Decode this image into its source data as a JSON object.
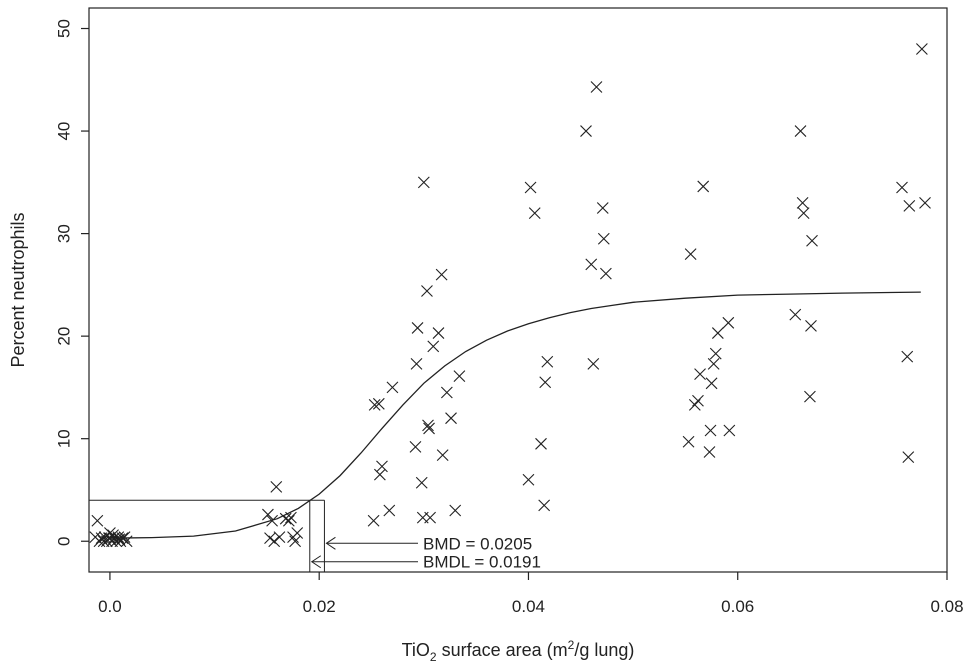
{
  "chart_data": {
    "type": "scatter",
    "xlabel": {
      "pre": "TiO",
      "sub": "2",
      "mid": " surface area (m",
      "sup": "2",
      "post": "/g lung)"
    },
    "ylabel": "Percent neutrophils",
    "xlim": [
      -0.002,
      0.08
    ],
    "ylim": [
      -3,
      52
    ],
    "x_ticks": [
      0.0,
      0.02,
      0.04,
      0.06,
      0.08
    ],
    "x_tick_labels": [
      "0.0",
      "0.02",
      "0.04",
      "0.06",
      "0.08"
    ],
    "y_ticks": [
      0,
      10,
      20,
      30,
      40,
      50
    ],
    "y_tick_labels": [
      "0",
      "10",
      "20",
      "30",
      "40",
      "50"
    ],
    "marker": "x",
    "points": [
      [
        -0.0012,
        2.0
      ],
      [
        -0.0014,
        0.4
      ],
      [
        -0.001,
        0.0
      ],
      [
        -0.0008,
        0.3
      ],
      [
        -0.0005,
        0.4
      ],
      [
        -0.0003,
        0.0
      ],
      [
        -0.0001,
        0.3
      ],
      [
        0.0,
        0.8
      ],
      [
        0.0002,
        0.0
      ],
      [
        0.0004,
        0.3
      ],
      [
        0.0006,
        0.0
      ],
      [
        0.0008,
        0.4
      ],
      [
        0.001,
        0.0
      ],
      [
        0.0012,
        0.3
      ],
      [
        0.0014,
        0.4
      ],
      [
        0.0016,
        0.0
      ],
      [
        0.0003,
        0.6
      ],
      [
        -0.0006,
        0.0
      ],
      [
        0.0009,
        0.2
      ],
      [
        0.0,
        0.3
      ],
      [
        0.0151,
        2.6
      ],
      [
        0.0153,
        0.3
      ],
      [
        0.0155,
        2.0
      ],
      [
        0.0157,
        0.0
      ],
      [
        0.0159,
        5.3
      ],
      [
        0.0162,
        0.4
      ],
      [
        0.0168,
        2.2
      ],
      [
        0.0171,
        2.0
      ],
      [
        0.0173,
        2.3
      ],
      [
        0.0175,
        0.4
      ],
      [
        0.0177,
        0.0
      ],
      [
        0.0179,
        0.8
      ],
      [
        0.0252,
        2.0
      ],
      [
        0.0253,
        13.3
      ],
      [
        0.0257,
        13.4
      ],
      [
        0.0258,
        6.5
      ],
      [
        0.026,
        7.3
      ],
      [
        0.0267,
        3.0
      ],
      [
        0.027,
        15.0
      ],
      [
        0.0294,
        20.8
      ],
      [
        0.0293,
        17.3
      ],
      [
        0.0292,
        9.2
      ],
      [
        0.0298,
        5.7
      ],
      [
        0.0299,
        2.3
      ],
      [
        0.03,
        35.0
      ],
      [
        0.0303,
        24.4
      ],
      [
        0.0304,
        11.3
      ],
      [
        0.0305,
        11.0
      ],
      [
        0.0306,
        2.3
      ],
      [
        0.0309,
        19.0
      ],
      [
        0.0314,
        20.3
      ],
      [
        0.0317,
        26.0
      ],
      [
        0.0318,
        8.4
      ],
      [
        0.0322,
        14.5
      ],
      [
        0.0326,
        12.0
      ],
      [
        0.033,
        3.0
      ],
      [
        0.0334,
        16.1
      ],
      [
        0.04,
        6.0
      ],
      [
        0.0402,
        34.5
      ],
      [
        0.0406,
        32.0
      ],
      [
        0.0412,
        9.5
      ],
      [
        0.0415,
        3.5
      ],
      [
        0.0416,
        15.5
      ],
      [
        0.0418,
        17.5
      ],
      [
        0.0455,
        40.0
      ],
      [
        0.046,
        27.0
      ],
      [
        0.0462,
        17.3
      ],
      [
        0.0465,
        44.3
      ],
      [
        0.0471,
        32.5
      ],
      [
        0.0472,
        29.5
      ],
      [
        0.0474,
        26.1
      ],
      [
        0.0553,
        9.7
      ],
      [
        0.0555,
        28.0
      ],
      [
        0.0559,
        13.3
      ],
      [
        0.0562,
        13.7
      ],
      [
        0.0564,
        16.3
      ],
      [
        0.0567,
        34.6
      ],
      [
        0.0573,
        8.7
      ],
      [
        0.0574,
        10.8
      ],
      [
        0.0575,
        15.4
      ],
      [
        0.0577,
        17.3
      ],
      [
        0.0579,
        18.3
      ],
      [
        0.0581,
        20.3
      ],
      [
        0.0591,
        21.3
      ],
      [
        0.0592,
        10.8
      ],
      [
        0.0655,
        22.1
      ],
      [
        0.066,
        40.0
      ],
      [
        0.0662,
        33.0
      ],
      [
        0.0663,
        32.0
      ],
      [
        0.0669,
        14.1
      ],
      [
        0.067,
        21.0
      ],
      [
        0.0671,
        29.3
      ],
      [
        0.0757,
        34.5
      ],
      [
        0.0762,
        18.0
      ],
      [
        0.0763,
        8.2
      ],
      [
        0.0764,
        32.7
      ],
      [
        0.0776,
        48.0
      ],
      [
        0.0779,
        33.0
      ]
    ],
    "fitted_curve": {
      "x": [
        0.0,
        0.004,
        0.008,
        0.012,
        0.016,
        0.018,
        0.02,
        0.022,
        0.024,
        0.026,
        0.028,
        0.03,
        0.032,
        0.034,
        0.036,
        0.038,
        0.04,
        0.042,
        0.044,
        0.046,
        0.048,
        0.05,
        0.055,
        0.06,
        0.065,
        0.07,
        0.0775
      ],
      "y": [
        0.3,
        0.35,
        0.5,
        1.0,
        2.2,
        3.2,
        4.6,
        6.4,
        8.6,
        11.0,
        13.3,
        15.4,
        17.1,
        18.5,
        19.6,
        20.5,
        21.2,
        21.8,
        22.3,
        22.7,
        23.0,
        23.3,
        23.7,
        24.0,
        24.1,
        24.2,
        24.3
      ]
    },
    "bmr_level": 4.0,
    "annotations": [
      {
        "label": "BMD = 0.0205",
        "x": 0.0205,
        "y": -0.2
      },
      {
        "label": "BMDL = 0.0191",
        "x": 0.0191,
        "y": -2.0
      }
    ]
  }
}
